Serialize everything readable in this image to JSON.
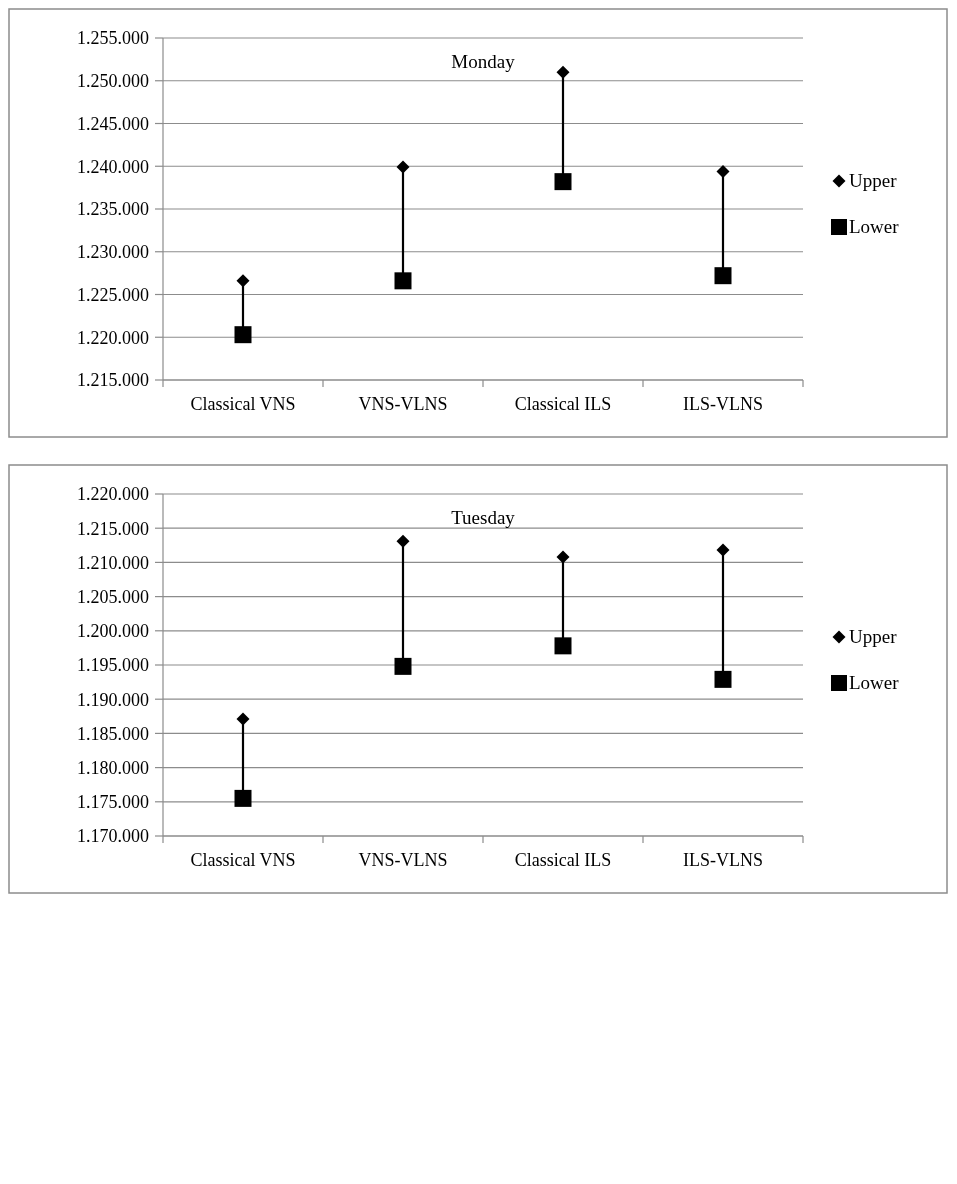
{
  "chart_data": [
    {
      "type": "scatter",
      "title": "Monday",
      "categories": [
        "Classical VNS",
        "VNS-VLNS",
        "Classical ILS",
        "ILS-VLNS"
      ],
      "series": [
        {
          "name": "Upper",
          "color": "#000000",
          "marker": "diamond",
          "values": [
            1226600,
            1239900,
            1251000,
            1239400
          ]
        },
        {
          "name": "Lower",
          "color": "#000000",
          "marker": "square",
          "values": [
            1220300,
            1226600,
            1238200,
            1227200
          ]
        }
      ],
      "ylim": [
        1215000,
        1255000
      ],
      "yticks": [
        {
          "value": 1215000,
          "label": "1.215.000"
        },
        {
          "value": 1220000,
          "label": "1.220.000"
        },
        {
          "value": 1225000,
          "label": "1.225.000"
        },
        {
          "value": 1230000,
          "label": "1.230.000"
        },
        {
          "value": 1235000,
          "label": "1.235.000"
        },
        {
          "value": 1240000,
          "label": "1.240.000"
        },
        {
          "value": 1245000,
          "label": "1.245.000"
        },
        {
          "value": 1250000,
          "label": "1.250.000"
        },
        {
          "value": 1255000,
          "label": "1.255.000"
        }
      ],
      "grid": "y",
      "legend": "right"
    },
    {
      "type": "scatter",
      "title": "Tuesday",
      "categories": [
        "Classical VNS",
        "VNS-VLNS",
        "Classical ILS",
        "ILS-VLNS"
      ],
      "series": [
        {
          "name": "Upper",
          "color": "#000000",
          "marker": "diamond",
          "values": [
            1187100,
            1213100,
            1210800,
            1211800
          ]
        },
        {
          "name": "Lower",
          "color": "#000000",
          "marker": "square",
          "values": [
            1175500,
            1194800,
            1197800,
            1192900
          ]
        }
      ],
      "ylim": [
        1170000,
        1220000
      ],
      "yticks": [
        {
          "value": 1170000,
          "label": "1.170.000"
        },
        {
          "value": 1175000,
          "label": "1.175.000"
        },
        {
          "value": 1180000,
          "label": "1.180.000"
        },
        {
          "value": 1185000,
          "label": "1.185.000"
        },
        {
          "value": 1190000,
          "label": "1.190.000"
        },
        {
          "value": 1195000,
          "label": "1.195.000"
        },
        {
          "value": 1200000,
          "label": "1.200.000"
        },
        {
          "value": 1205000,
          "label": "1.205.000"
        },
        {
          "value": 1210000,
          "label": "1.210.000"
        },
        {
          "value": 1215000,
          "label": "1.215.000"
        },
        {
          "value": 1220000,
          "label": "1.220.000"
        }
      ],
      "grid": "y",
      "legend": "right"
    }
  ]
}
